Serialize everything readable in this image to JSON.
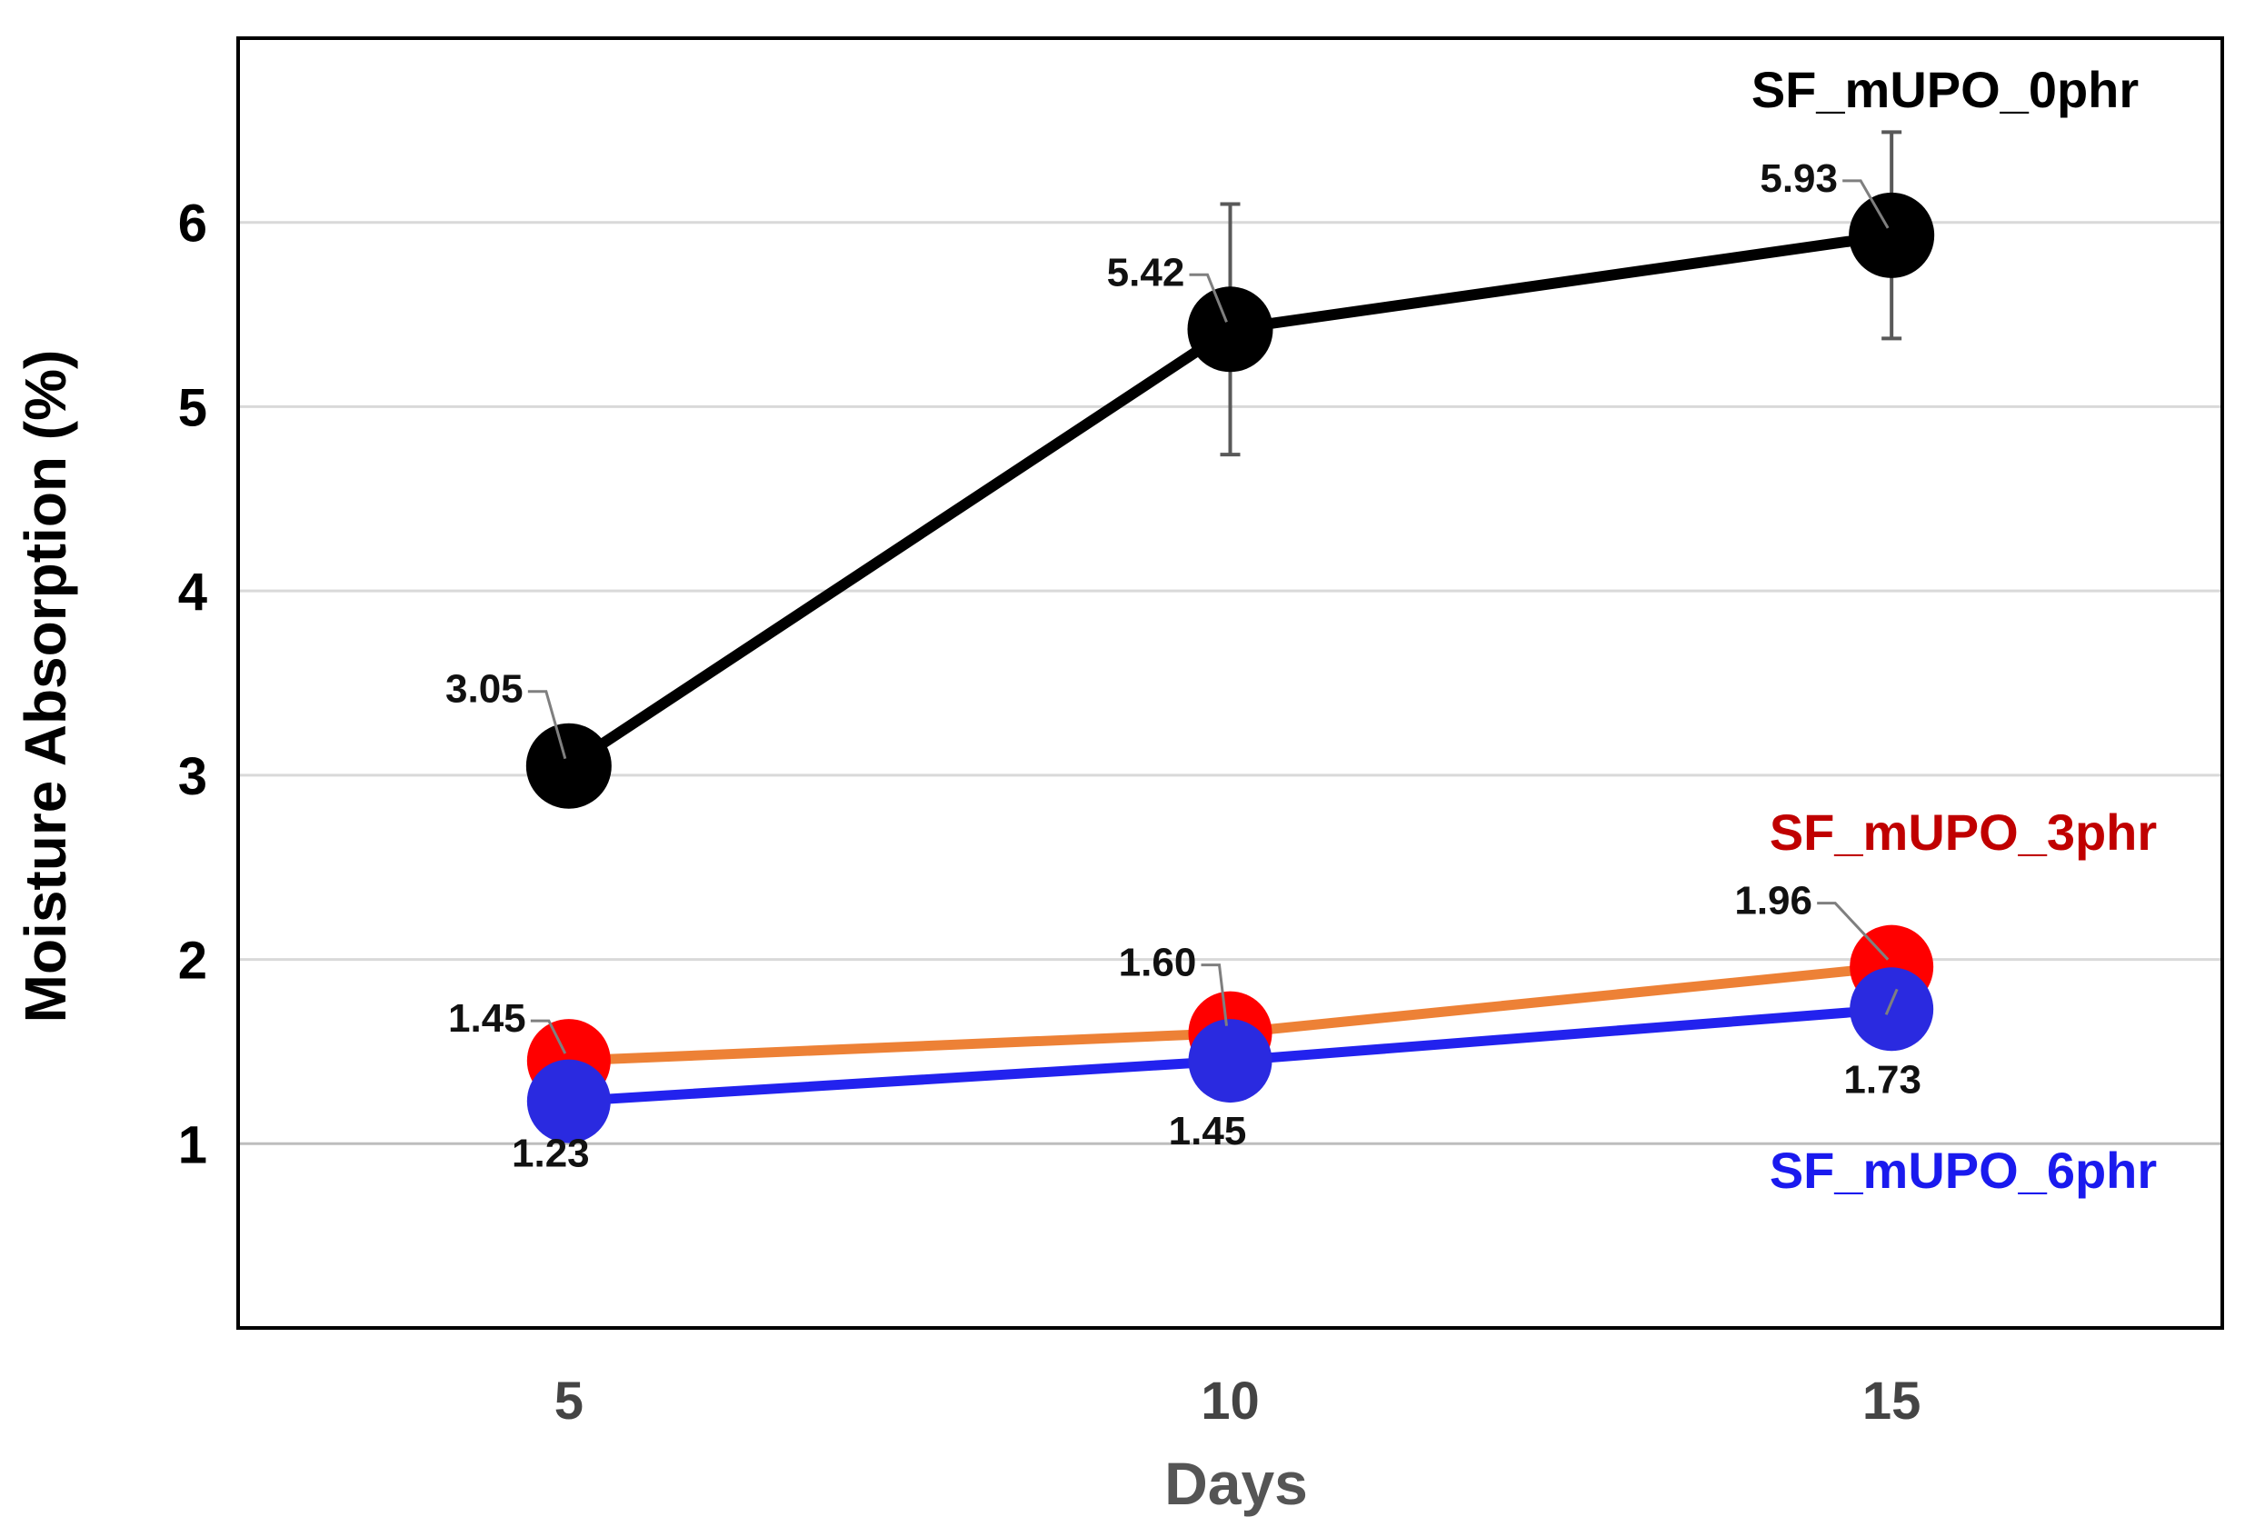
{
  "chart_data": {
    "type": "line",
    "title": "",
    "xlabel": "Days",
    "ylabel": "Moisture Absorption (%)",
    "x": [
      5,
      10,
      15
    ],
    "x_tick_labels": [
      "5",
      "10",
      "15"
    ],
    "xlim": [
      2.5,
      17.5
    ],
    "ylim": [
      0,
      7
    ],
    "y_ticks": [
      1,
      2,
      3,
      4,
      5,
      6
    ],
    "y_tick_labels": [
      "1",
      "2",
      "3",
      "4",
      "5",
      "6"
    ],
    "grid": "horizontal",
    "series": [
      {
        "name": "SF_mUPO_0phr",
        "line_color": "#000000",
        "marker_color": "#000000",
        "label_color": "#000000",
        "values": [
          3.05,
          5.42,
          5.93
        ],
        "value_labels": [
          "3.05",
          "5.42",
          "5.93"
        ],
        "error": [
          0,
          0.68,
          0.56
        ]
      },
      {
        "name": "SF_mUPO_3phr",
        "line_color": "#ed8136",
        "marker_color": "#ff0000",
        "label_color": "#c00000",
        "values": [
          1.45,
          1.6,
          1.96
        ],
        "value_labels": [
          "1.45",
          "1.60",
          "1.96"
        ],
        "error": [
          0,
          0.1,
          0.05
        ]
      },
      {
        "name": "SF_mUPO_6phr",
        "line_color": "#2222ee",
        "marker_color": "#2a2ae0",
        "label_color": "#1a1aee",
        "values": [
          1.23,
          1.45,
          1.73
        ],
        "value_labels": [
          "1.23",
          "1.45",
          "1.73"
        ],
        "error": [
          0,
          0,
          0
        ]
      }
    ]
  }
}
